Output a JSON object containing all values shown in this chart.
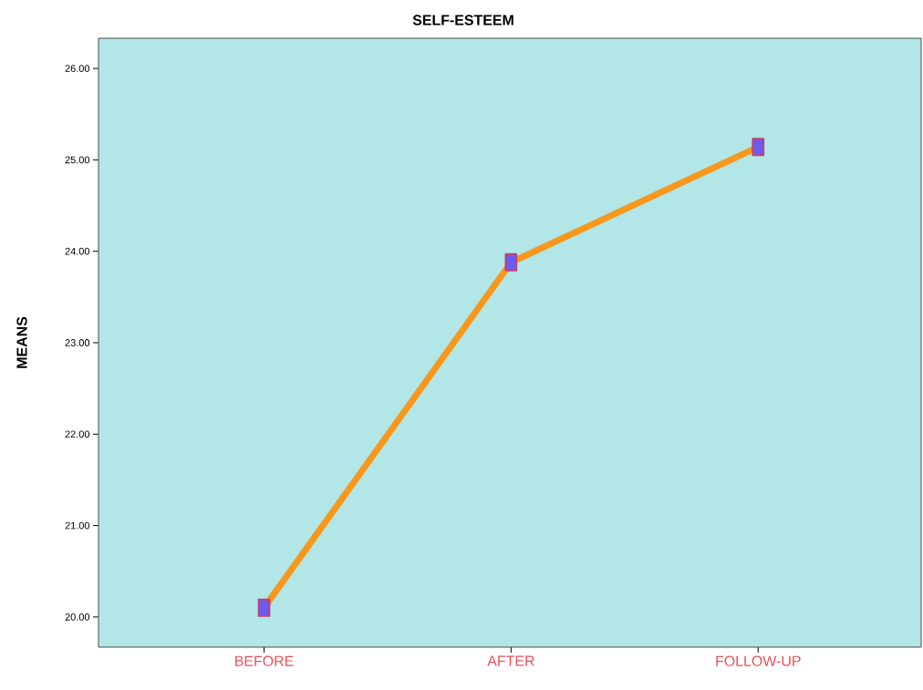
{
  "chart_data": {
    "type": "line",
    "title": "SELF-ESTEEM",
    "ylabel": "MEANS",
    "categories": [
      "BEFORE",
      "AFTER",
      "FOLLOW-UP"
    ],
    "series": [
      {
        "color": "#f7971c",
        "values": [
          20.1,
          23.88,
          25.14
        ]
      }
    ],
    "marker": "square",
    "ylim": [
      19.67,
      26.33
    ],
    "yticks": [
      {
        "value": 20,
        "label": "20.00"
      },
      {
        "value": 21,
        "label": "21.00"
      },
      {
        "value": 22,
        "label": "22.00"
      },
      {
        "value": 23,
        "label": "23.00"
      },
      {
        "value": 24,
        "label": "24.00"
      },
      {
        "value": 25,
        "label": "25.00"
      },
      {
        "value": 26,
        "label": "26.00"
      }
    ]
  }
}
